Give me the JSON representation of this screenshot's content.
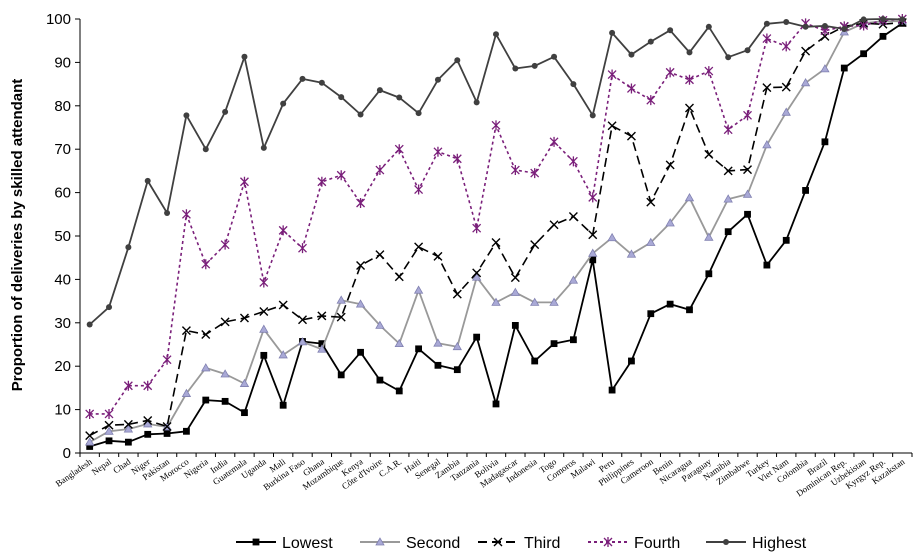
{
  "chart_data": {
    "type": "line",
    "ylabel": "Proportion of deliveries by skilled attendant",
    "xlabel": "",
    "ylim": [
      0,
      100
    ],
    "yticks": [
      0,
      10,
      20,
      30,
      40,
      50,
      60,
      70,
      80,
      90,
      100
    ],
    "grid": false,
    "legend_position": "bottom",
    "categories": [
      "Bangladesh",
      "Nepal",
      "Chad",
      "Niger",
      "Pakistan",
      "Morocco",
      "Nigeria",
      "India",
      "Guatemala",
      "Uganda",
      "Mali",
      "Burkina Faso",
      "Ghana",
      "Mozambique",
      "Kenya",
      "Côte d'Ivoire",
      "C.A.R.",
      "Haiti",
      "Senegal",
      "Zambia",
      "Tanzania",
      "Bolivia",
      "Madagascar",
      "Indonesia",
      "Togo",
      "Comoros",
      "Malawi",
      "Peru",
      "Philippines",
      "Cameroon",
      "Benin",
      "Nicaragua",
      "Paraguay",
      "Namibia",
      "Zimbabwe",
      "Turkey",
      "Viet Nam",
      "Colombia",
      "Brazil",
      "Dominican Rep.",
      "Uzbekistan",
      "Kyrgyz Rep.",
      "Kazakstan"
    ],
    "series": [
      {
        "name": "Lowest",
        "color": "#000000",
        "marker": "square",
        "dash": "solid",
        "values": [
          1.5,
          2.8,
          2.5,
          4.3,
          4.5,
          5,
          12.2,
          11.9,
          9.3,
          22.5,
          11,
          25.7,
          25.2,
          18,
          23.2,
          16.8,
          14.3,
          24,
          20.2,
          19.2,
          26.7,
          11.3,
          29.4,
          21.2,
          25.2,
          26.1,
          44.5,
          14.5,
          21.2,
          32.1,
          34.3,
          33,
          41.3,
          51,
          55,
          43.3,
          49,
          60.5,
          71.7,
          88.7,
          92,
          96,
          99
        ]
      },
      {
        "name": "Second",
        "color": "#999999",
        "marker": "triangle",
        "dash": "solid",
        "values": [
          2.5,
          5,
          5.5,
          6.7,
          6,
          13.7,
          19.6,
          18.2,
          16,
          28.5,
          22.6,
          25.6,
          23.9,
          35.2,
          34.3,
          29.4,
          25.2,
          37.5,
          25.3,
          24.5,
          40.5,
          34.7,
          37,
          34.7,
          34.7,
          39.8,
          46,
          49.6,
          45.8,
          48.5,
          53,
          58.8,
          49.7,
          58.5,
          59.6,
          71,
          78.5,
          85.3,
          88.5,
          97,
          99,
          99.5,
          99.5
        ]
      },
      {
        "name": "Third",
        "color": "#000000",
        "marker": "x",
        "dash": "long-dash",
        "values": [
          4,
          6.4,
          6.6,
          7.5,
          6.1,
          28.2,
          27.3,
          30.2,
          31.1,
          32.6,
          34.1,
          30.7,
          31.6,
          31.3,
          43.2,
          45.7,
          40.6,
          47.5,
          45.3,
          36.6,
          41.5,
          48.5,
          40.4,
          48,
          52.6,
          54.5,
          50.3,
          75.4,
          73,
          57.8,
          66.4,
          79.5,
          68.8,
          65,
          65.3,
          84.2,
          84.3,
          92.6,
          96,
          98.3,
          99,
          98.8,
          99.2
        ]
      },
      {
        "name": "Fourth",
        "color": "#7a1f7a",
        "marker": "asterisk",
        "dash": "dotted",
        "values": [
          9,
          9,
          15.5,
          15.5,
          21.5,
          55,
          43.5,
          48,
          62.5,
          39.3,
          51.3,
          47.2,
          62.5,
          64,
          57.6,
          65.2,
          70,
          60.7,
          69.4,
          67.8,
          51.8,
          75.5,
          65.2,
          64.5,
          71.7,
          67.2,
          58.9,
          87.2,
          84,
          81.3,
          87.7,
          86,
          88,
          74.5,
          77.8,
          95.5,
          93.7,
          99,
          97.3,
          98.3,
          98.5,
          99.7,
          100
        ]
      },
      {
        "name": "Highest",
        "color": "#404040",
        "marker": "circle",
        "dash": "solid",
        "values": [
          29.6,
          33.6,
          47.4,
          62.7,
          55.3,
          77.8,
          70,
          78.6,
          91.3,
          70.3,
          80.5,
          86.2,
          85.3,
          82,
          78,
          83.6,
          81.9,
          78.3,
          86,
          90.5,
          80.8,
          96.5,
          88.6,
          89.2,
          91.3,
          85,
          77.8,
          96.8,
          91.8,
          94.8,
          97.4,
          92.3,
          98.2,
          91.2,
          92.8,
          98.9,
          99.3,
          98.2,
          98.4,
          97.7,
          99.9,
          100,
          99.9
        ]
      }
    ]
  }
}
